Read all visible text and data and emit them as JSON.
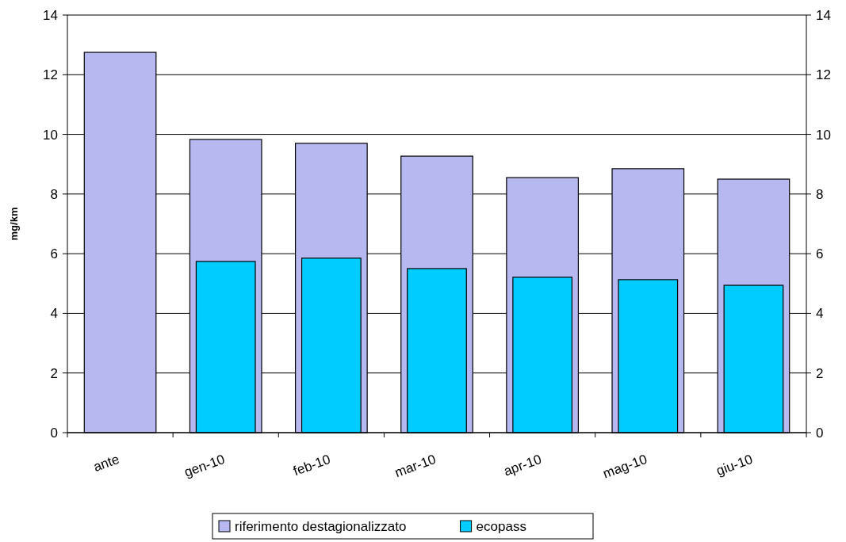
{
  "chart_data": {
    "type": "bar",
    "ylabel": "mg/km",
    "categories": [
      "ante",
      "gen-10",
      "feb-10",
      "mar-10",
      "apr-10",
      "mag-10",
      "giu-10"
    ],
    "series": [
      {
        "name": "riferimento destagionalizzato",
        "color": "#b8b8f0",
        "values": [
          12.75,
          9.83,
          9.7,
          9.27,
          8.55,
          8.85,
          8.5
        ]
      },
      {
        "name": "ecopass",
        "color": "#00ccff",
        "values": [
          null,
          5.74,
          5.85,
          5.5,
          5.21,
          5.13,
          4.94
        ]
      }
    ],
    "ylim": [
      0,
      14
    ],
    "yticks": [
      0,
      2,
      4,
      6,
      8,
      10,
      12,
      14
    ],
    "y2lim": [
      0,
      14
    ],
    "y2ticks": [
      0,
      2,
      4,
      6,
      8,
      10,
      12,
      14
    ],
    "grid": "y",
    "legend": "bottom"
  }
}
